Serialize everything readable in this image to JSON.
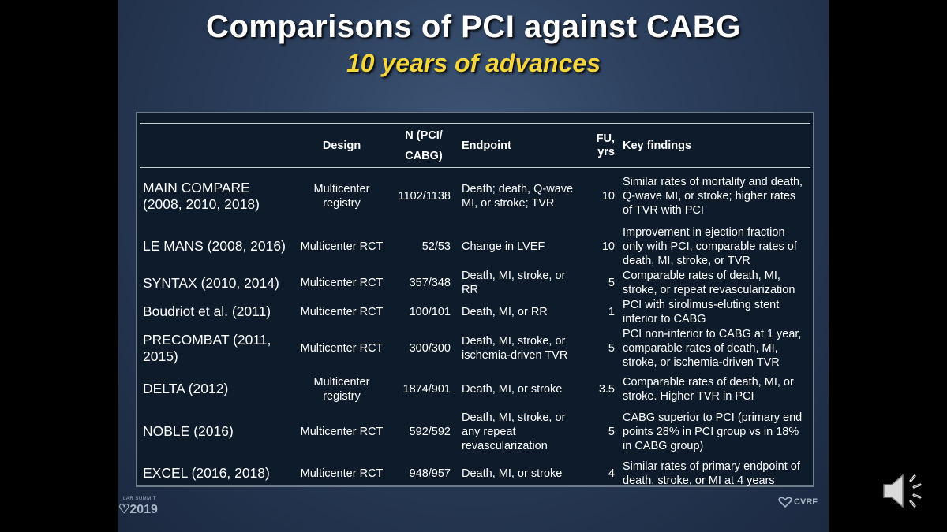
{
  "slide": {
    "title": "Comparisons of PCI against CABG",
    "subtitle": "10 years of advances"
  },
  "table": {
    "headers": {
      "study": "",
      "design": "Design",
      "n_line1": "N (PCI/",
      "n_line2": "CABG)",
      "endpoint": "Endpoint",
      "fu_line1": "FU,",
      "fu_line2": "yrs",
      "findings": "Key findings"
    },
    "rows": [
      {
        "study": "MAIN COMPARE (2008, 2010, 2018)",
        "design": "Multicenter registry",
        "n": "1102/1138",
        "endpoint": "Death; death, Q-wave MI, or stroke; TVR",
        "fu": "10",
        "findings": "Similar rates of mortality and death, Q-wave MI, or stroke; higher rates of TVR with PCI"
      },
      {
        "study": "LE MANS (2008, 2016)",
        "design": "Multicenter RCT",
        "n": "52/53",
        "endpoint": "Change in LVEF",
        "fu": "10",
        "findings": "Improvement in ejection fraction only with PCI, comparable rates of death, MI, stroke, or TVR"
      },
      {
        "study": "SYNTAX (2010, 2014)",
        "design": "Multicenter RCT",
        "n": "357/348",
        "endpoint": "Death, MI, stroke, or RR",
        "fu": "5",
        "findings": "Comparable rates of death, MI, stroke, or repeat revascularization"
      },
      {
        "study": "Boudriot et al. (2011)",
        "design": "Multicenter RCT",
        "n": "100/101",
        "endpoint": "Death, MI, or RR",
        "fu": "1",
        "findings": "PCI with sirolimus-eluting stent inferior to CABG"
      },
      {
        "study": "PRECOMBAT (2011, 2015)",
        "design": "Multicenter RCT",
        "n": "300/300",
        "endpoint": "Death, MI, stroke, or ischemia-driven TVR",
        "fu": "5",
        "findings": "PCI non-inferior to CABG at 1 year, comparable rates of death, MI, stroke, or ischemia-driven TVR"
      },
      {
        "study": "DELTA (2012)",
        "design": "Multicenter registry",
        "n": "1874/901",
        "endpoint": "Death, MI, or stroke",
        "fu": "3.5",
        "findings": "Comparable rates of death, MI, or stroke. Higher TVR in PCI"
      },
      {
        "study": "NOBLE (2016)",
        "design": "Multicenter RCT",
        "n": "592/592",
        "endpoint": "Death, MI, stroke, or any repeat revascularization",
        "fu": "5",
        "findings": "CABG superior to PCI (primary end points 28% in PCI group vs in 18% in CABG group)"
      },
      {
        "study": "EXCEL (2016, 2018)",
        "design": "Multicenter RCT",
        "n": "948/957",
        "endpoint": "Death, MI, or stroke",
        "fu": "4",
        "findings": "Similar rates of primary endpoint of death, stroke, or MI at 4 years"
      }
    ]
  },
  "footer": {
    "left_small": "LAR SUMMIT",
    "left_year": "2019",
    "right_logo": "CVRF"
  },
  "controls": {
    "audio_icon": "speaker-icon"
  },
  "colors": {
    "title": "#ffffff",
    "subtitle": "#f5d63d",
    "table_bg": "#0d1b2a"
  }
}
